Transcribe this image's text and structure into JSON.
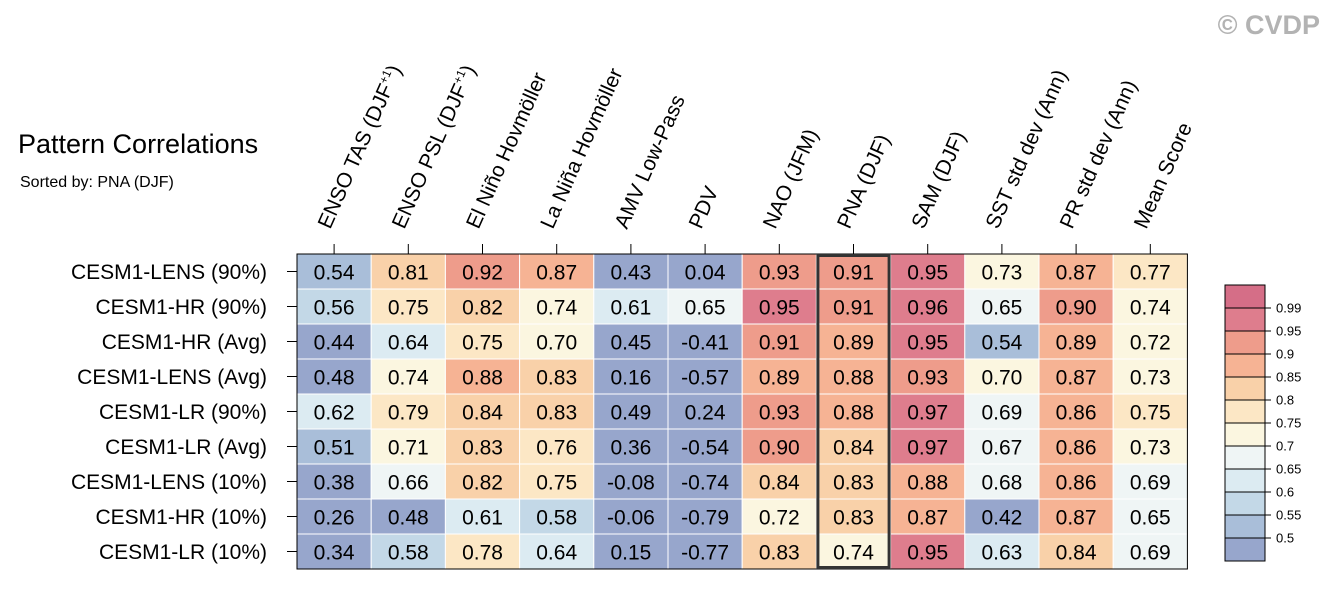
{
  "header": {
    "title": "Pattern Correlations",
    "subtitle": "Sorted by: PNA (DJF)",
    "watermark": "© CVDP"
  },
  "chart_data": {
    "type": "heatmap",
    "title": "Pattern Correlations",
    "subtitle": "Sorted by: PNA (DJF)",
    "columns": [
      {
        "base": "ENSO TAS (DJF",
        "sup": "+1",
        "tail": ")"
      },
      {
        "base": "ENSO PSL (DJF",
        "sup": "+1",
        "tail": ")"
      },
      {
        "base": "El Niño Hovmöller"
      },
      {
        "base": "La Niña Hovmöller"
      },
      {
        "base": "AMV Low-Pass"
      },
      {
        "base": "PDV"
      },
      {
        "base": "NAO (JFM)"
      },
      {
        "base": "PNA (DJF)"
      },
      {
        "base": "SAM (DJF)"
      },
      {
        "base": "SST std dev (Ann)"
      },
      {
        "base": "PR std dev (Ann)"
      },
      {
        "base": "Mean Score"
      }
    ],
    "rows": [
      "CESM1-LENS (90%)",
      "CESM1-HR (90%)",
      "CESM1-HR (Avg)",
      "CESM1-LENS (Avg)",
      "CESM1-LR (90%)",
      "CESM1-LR (Avg)",
      "CESM1-LENS (10%)",
      "CESM1-HR (10%)",
      "CESM1-LR (10%)"
    ],
    "values": [
      [
        0.54,
        0.81,
        0.92,
        0.87,
        0.43,
        0.04,
        0.93,
        0.91,
        0.95,
        0.73,
        0.87,
        0.77
      ],
      [
        0.56,
        0.75,
        0.82,
        0.74,
        0.61,
        0.65,
        0.95,
        0.91,
        0.96,
        0.65,
        0.9,
        0.74
      ],
      [
        0.44,
        0.64,
        0.75,
        0.7,
        0.45,
        -0.41,
        0.91,
        0.89,
        0.95,
        0.54,
        0.89,
        0.72
      ],
      [
        0.48,
        0.74,
        0.88,
        0.83,
        0.16,
        -0.57,
        0.89,
        0.88,
        0.93,
        0.7,
        0.87,
        0.73
      ],
      [
        0.62,
        0.79,
        0.84,
        0.83,
        0.49,
        0.24,
        0.93,
        0.88,
        0.97,
        0.69,
        0.86,
        0.75
      ],
      [
        0.51,
        0.71,
        0.83,
        0.76,
        0.36,
        -0.54,
        0.9,
        0.84,
        0.97,
        0.67,
        0.86,
        0.73
      ],
      [
        0.38,
        0.66,
        0.82,
        0.75,
        -0.08,
        -0.74,
        0.84,
        0.83,
        0.88,
        0.68,
        0.86,
        0.69
      ],
      [
        0.26,
        0.48,
        0.61,
        0.58,
        -0.06,
        -0.79,
        0.72,
        0.83,
        0.87,
        0.42,
        0.87,
        0.65
      ],
      [
        0.34,
        0.58,
        0.78,
        0.64,
        0.15,
        -0.77,
        0.83,
        0.74,
        0.95,
        0.63,
        0.84,
        0.69
      ]
    ],
    "display": [
      [
        "0.54",
        "0.81",
        "0.92",
        "0.87",
        "0.43",
        "0.04",
        "0.93",
        "0.91",
        "0.95",
        "0.73",
        "0.87",
        "0.77"
      ],
      [
        "0.56",
        "0.75",
        "0.82",
        "0.74",
        "0.61",
        "0.65",
        "0.95",
        "0.91",
        "0.96",
        "0.65",
        "0.90",
        "0.74"
      ],
      [
        "0.44",
        "0.64",
        "0.75",
        "0.70",
        "0.45",
        "-0.41",
        "0.91",
        "0.89",
        "0.95",
        "0.54",
        "0.89",
        "0.72"
      ],
      [
        "0.48",
        "0.74",
        "0.88",
        "0.83",
        "0.16",
        "-0.57",
        "0.89",
        "0.88",
        "0.93",
        "0.70",
        "0.87",
        "0.73"
      ],
      [
        "0.62",
        "0.79",
        "0.84",
        "0.83",
        "0.49",
        "0.24",
        "0.93",
        "0.88",
        "0.97",
        "0.69",
        "0.86",
        "0.75"
      ],
      [
        "0.51",
        "0.71",
        "0.83",
        "0.76",
        "0.36",
        "-0.54",
        "0.90",
        "0.84",
        "0.97",
        "0.67",
        "0.86",
        "0.73"
      ],
      [
        "0.38",
        "0.66",
        "0.82",
        "0.75",
        "-0.08",
        "-0.74",
        "0.84",
        "0.83",
        "0.88",
        "0.68",
        "0.86",
        "0.69"
      ],
      [
        "0.26",
        "0.48",
        "0.61",
        "0.58",
        "-0.06",
        "-0.79",
        "0.72",
        "0.83",
        "0.87",
        "0.42",
        "0.87",
        "0.65"
      ],
      [
        "0.34",
        "0.58",
        "0.78",
        "0.64",
        "0.15",
        "-0.77",
        "0.83",
        "0.74",
        "0.95",
        "0.63",
        "0.84",
        "0.69"
      ]
    ],
    "highlighted_column": "PNA (DJF)",
    "colorbar": {
      "ticks": [
        "0.99",
        "0.95",
        "0.9",
        "0.85",
        "0.8",
        "0.75",
        "0.7",
        "0.65",
        "0.6",
        "0.55",
        "0.5"
      ],
      "thresholds": [
        0.5,
        0.55,
        0.6,
        0.65,
        0.7,
        0.75,
        0.8,
        0.85,
        0.9,
        0.95,
        0.99
      ],
      "colors": [
        "#97a6cc",
        "#a9bed9",
        "#c3d8e7",
        "#dcebf2",
        "#eff5f5",
        "#fbf6e0",
        "#fce7c5",
        "#f9d1a9",
        "#f6b394",
        "#ee9c8b",
        "#de7d8d",
        "#d56e87"
      ]
    }
  }
}
